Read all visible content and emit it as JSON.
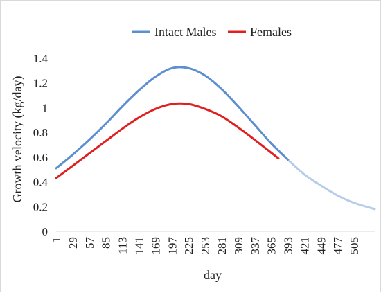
{
  "chart_data": {
    "type": "line",
    "title": "",
    "xlabel": "day",
    "ylabel": "Growth velocity (kg/day)",
    "ylim": [
      0,
      1.4
    ],
    "yticks": [
      0,
      0.2,
      0.4,
      0.6,
      0.8,
      1,
      1.2,
      1.4
    ],
    "yticks_display": [
      "0",
      "0.2",
      "0.4",
      "0.6",
      "0.8",
      "1",
      "1.2",
      "1.4"
    ],
    "xlim": [
      1,
      540
    ],
    "xticks": [
      1,
      29,
      57,
      85,
      113,
      141,
      169,
      197,
      225,
      253,
      281,
      309,
      337,
      365,
      393,
      421,
      449,
      477,
      505
    ],
    "xticks_display": [
      "1",
      "29",
      "57",
      "85",
      "113",
      "141",
      "169",
      "197",
      "225",
      "253",
      "281",
      "309",
      "337",
      "365",
      "393",
      "421",
      "449",
      "477",
      "505"
    ],
    "grid": false,
    "legend_position": "top",
    "series": [
      {
        "name": "Intact Males",
        "color": "#5b8fd0",
        "x": [
          1,
          29,
          57,
          85,
          113,
          141,
          169,
          197,
          225,
          253,
          281,
          309,
          337,
          365,
          393
        ],
        "y": [
          0.51,
          0.62,
          0.74,
          0.87,
          1.01,
          1.14,
          1.25,
          1.32,
          1.32,
          1.26,
          1.15,
          1.01,
          0.86,
          0.71,
          0.58
        ]
      },
      {
        "name": "Females",
        "color": "#e02020",
        "x": [
          1,
          29,
          57,
          85,
          113,
          141,
          169,
          197,
          225,
          253,
          281,
          309,
          337,
          377
        ],
        "y": [
          0.43,
          0.53,
          0.63,
          0.73,
          0.83,
          0.92,
          0.99,
          1.03,
          1.03,
          0.99,
          0.93,
          0.84,
          0.74,
          0.59
        ]
      },
      {
        "name": "",
        "color": "#b7cce8",
        "x": [
          365,
          393,
          421,
          449,
          477,
          505,
          540
        ],
        "y": [
          0.71,
          0.58,
          0.46,
          0.37,
          0.29,
          0.23,
          0.18
        ]
      }
    ]
  }
}
